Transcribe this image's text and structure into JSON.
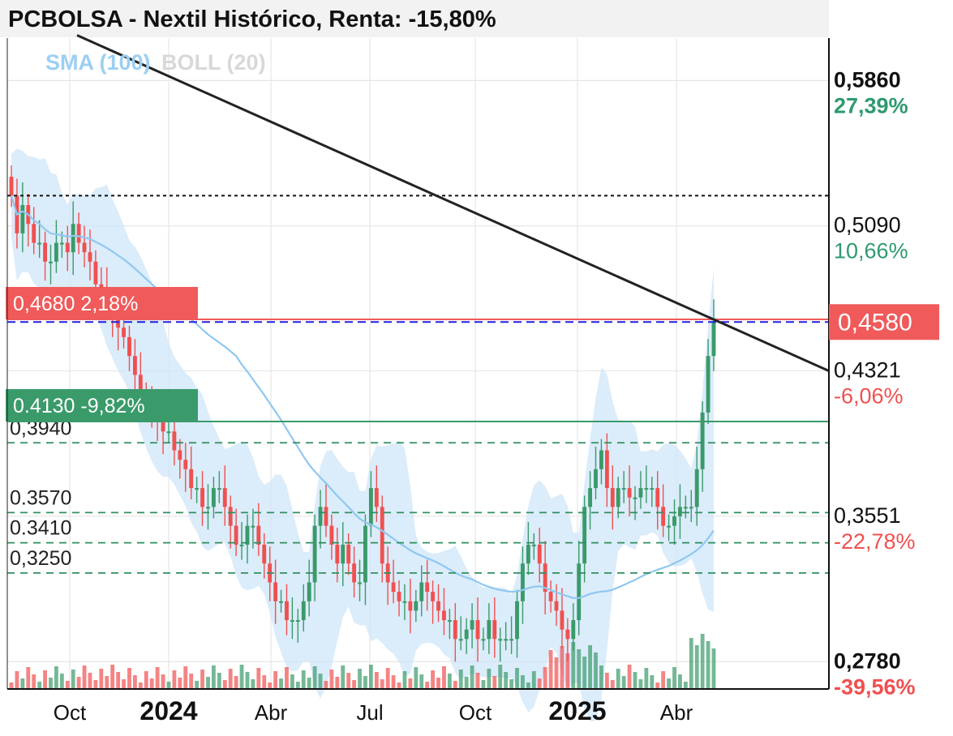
{
  "title": "PCBOLSA - Nextil Histórico, Renta: -15,80%",
  "legend": {
    "sma": "SMA (100)",
    "boll": "BOLL (20)"
  },
  "colors": {
    "up": "#3a9a6a",
    "down": "#f05050",
    "sma": "#8fc8f0",
    "band": "#cfe6f8",
    "resistance": "#f05a5a",
    "support": "#3a9a6a",
    "guide": "#2f8f5f",
    "current": "#2020e0",
    "trend": "#222222"
  },
  "chart_data": {
    "type": "candlestick",
    "ylim": [
      0.2635,
      0.6085
    ],
    "x_ticks": [
      {
        "label": "Oct",
        "bold": false
      },
      {
        "label": "2024",
        "bold": true
      },
      {
        "label": "Abr",
        "bold": false
      },
      {
        "label": "Jul",
        "bold": false
      },
      {
        "label": "Oct",
        "bold": false
      },
      {
        "label": "2025",
        "bold": true
      },
      {
        "label": "Abr",
        "bold": false
      }
    ],
    "right_axis": [
      {
        "value": 0.586,
        "price": "0,5860",
        "pct": "27,39%",
        "pct_color": "#2e9a6e",
        "bold": true
      },
      {
        "value": 0.509,
        "price": "0,5090",
        "pct": "10,66%",
        "pct_color": "#2e9a6e",
        "bold": false
      },
      {
        "value": 0.4321,
        "price": "0,4321",
        "pct": "-6,06%",
        "pct_color": "#f05050",
        "bold": false
      },
      {
        "value": 0.3551,
        "price": "0,3551",
        "pct": "-22,78%",
        "pct_color": "#f05050",
        "bold": false
      },
      {
        "value": 0.278,
        "price": "0,2780",
        "pct": "-39,56%",
        "pct_color": "#f05050",
        "bold": true
      }
    ],
    "current_price": {
      "value": 0.458,
      "label": "0,4580"
    },
    "resistance": {
      "value": 0.468,
      "label": "0,4680 2,18%"
    },
    "support": {
      "value": 0.413,
      "label": "0.4130 -9,82%"
    },
    "guide_levels": [
      {
        "value": 0.394,
        "label": "0,3940"
      },
      {
        "value": 0.357,
        "label": "0.3570"
      },
      {
        "value": 0.341,
        "label": "0.3410"
      },
      {
        "value": 0.325,
        "label": "0,3250"
      }
    ],
    "prior_high": 0.525,
    "trendline": {
      "from": 0.61,
      "to": 0.4321
    },
    "closes": [
      0.525,
      0.505,
      0.52,
      0.51,
      0.5,
      0.5,
      0.49,
      0.49,
      0.5,
      0.5,
      0.495,
      0.51,
      0.5,
      0.495,
      0.49,
      0.478,
      0.475,
      0.468,
      0.46,
      0.455,
      0.45,
      0.44,
      0.43,
      0.42,
      0.415,
      0.41,
      0.405,
      0.4,
      0.4,
      0.39,
      0.385,
      0.38,
      0.37,
      0.37,
      0.36,
      0.36,
      0.37,
      0.37,
      0.36,
      0.35,
      0.34,
      0.34,
      0.35,
      0.35,
      0.34,
      0.33,
      0.32,
      0.31,
      0.31,
      0.3,
      0.3,
      0.3,
      0.31,
      0.32,
      0.35,
      0.36,
      0.35,
      0.34,
      0.33,
      0.34,
      0.33,
      0.32,
      0.32,
      0.35,
      0.37,
      0.36,
      0.33,
      0.32,
      0.315,
      0.31,
      0.31,
      0.305,
      0.31,
      0.32,
      0.315,
      0.31,
      0.305,
      0.3,
      0.3,
      0.29,
      0.29,
      0.295,
      0.3,
      0.29,
      0.29,
      0.3,
      0.29,
      0.29,
      0.29,
      0.29,
      0.31,
      0.33,
      0.34,
      0.34,
      0.33,
      0.315,
      0.31,
      0.305,
      0.295,
      0.29,
      0.3,
      0.33,
      0.36,
      0.37,
      0.38,
      0.39,
      0.37,
      0.36,
      0.37,
      0.37,
      0.365,
      0.365,
      0.37,
      0.37,
      0.37,
      0.36,
      0.35,
      0.35,
      0.355,
      0.36,
      0.36,
      0.36,
      0.38,
      0.41,
      0.44,
      0.458
    ]
  }
}
